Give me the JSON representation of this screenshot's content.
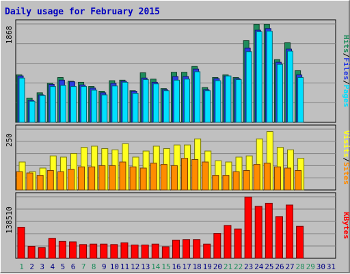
{
  "title": "Daily usage for February 2015",
  "colors": {
    "background": "#c0c0c0",
    "plot_bg": "#c0c0c0",
    "title": "#0000c0",
    "hits": "#1e8c5c",
    "files": "#2a3de0",
    "pages": "#00e0ff",
    "visits": "#ffff20",
    "sites": "#ff8c00",
    "kbytes": "#ff0000",
    "weekend": "#1e8c5c",
    "weekday": "#000080"
  },
  "panels": {
    "top": {
      "max_label": "1868",
      "legend": [
        "Hits",
        "/",
        "Files",
        "/",
        "Pages"
      ]
    },
    "mid": {
      "max_label": "250",
      "legend": [
        "Visits",
        "/",
        "Sites"
      ]
    },
    "bot": {
      "max_label": "138510",
      "legend": [
        "KBytes"
      ]
    }
  },
  "chart_data": [
    {
      "type": "bar",
      "title": "Daily usage for February 2015",
      "categories": [
        "1",
        "2",
        "3",
        "4",
        "5",
        "6",
        "7",
        "8",
        "9",
        "10",
        "11",
        "12",
        "13",
        "14",
        "15",
        "16",
        "17",
        "18",
        "19",
        "20",
        "21",
        "22",
        "23",
        "24",
        "25",
        "26",
        "27",
        "28",
        "29",
        "30",
        "31"
      ],
      "weekend_days": [
        "1",
        "7",
        "8",
        "14",
        "15",
        "21",
        "22",
        "28",
        "29"
      ],
      "ylim": [
        0,
        1868
      ],
      "series": [
        {
          "name": "Hits",
          "values": [
            900,
            460,
            560,
            740,
            850,
            780,
            760,
            680,
            590,
            790,
            800,
            600,
            940,
            820,
            640,
            950,
            950,
            1060,
            660,
            850,
            900,
            850,
            1550,
            1860,
            1860,
            1190,
            1510,
            980,
            null,
            null,
            null
          ]
        },
        {
          "name": "Files",
          "values": [
            880,
            420,
            520,
            720,
            800,
            770,
            710,
            650,
            560,
            740,
            780,
            590,
            840,
            760,
            620,
            870,
            870,
            1010,
            620,
            830,
            880,
            830,
            1410,
            1750,
            1780,
            1140,
            1390,
            900,
            null,
            null,
            null
          ]
        },
        {
          "name": "Pages",
          "values": [
            840,
            400,
            510,
            680,
            700,
            680,
            680,
            610,
            520,
            690,
            760,
            550,
            810,
            730,
            600,
            800,
            820,
            960,
            600,
            790,
            880,
            810,
            1340,
            1720,
            1730,
            1100,
            1350,
            850,
            null,
            null,
            null
          ]
        }
      ]
    },
    {
      "type": "bar",
      "ylim": [
        0,
        250
      ],
      "series": [
        {
          "name": "Visits",
          "values": [
            115,
            75,
            90,
            140,
            135,
            150,
            175,
            180,
            170,
            165,
            190,
            135,
            160,
            180,
            170,
            185,
            185,
            210,
            160,
            120,
            115,
            135,
            140,
            210,
            240,
            175,
            165,
            130,
            null,
            null,
            null
          ]
        },
        {
          "name": "Sites",
          "values": [
            75,
            70,
            60,
            80,
            75,
            85,
            95,
            95,
            100,
            100,
            115,
            95,
            90,
            110,
            105,
            100,
            130,
            125,
            115,
            60,
            60,
            75,
            80,
            105,
            110,
            95,
            90,
            80,
            null,
            null,
            null
          ]
        }
      ]
    },
    {
      "type": "bar",
      "ylim": [
        0,
        138510
      ],
      "series": [
        {
          "name": "KBytes",
          "values": [
            70000,
            27000,
            24000,
            45000,
            38000,
            37000,
            31000,
            32000,
            32000,
            31000,
            35000,
            30000,
            30000,
            32000,
            26000,
            41000,
            42000,
            42000,
            32000,
            56000,
            74000,
            66000,
            138000,
            117000,
            124000,
            94000,
            120000,
            72000,
            null,
            null,
            null
          ]
        }
      ]
    }
  ]
}
